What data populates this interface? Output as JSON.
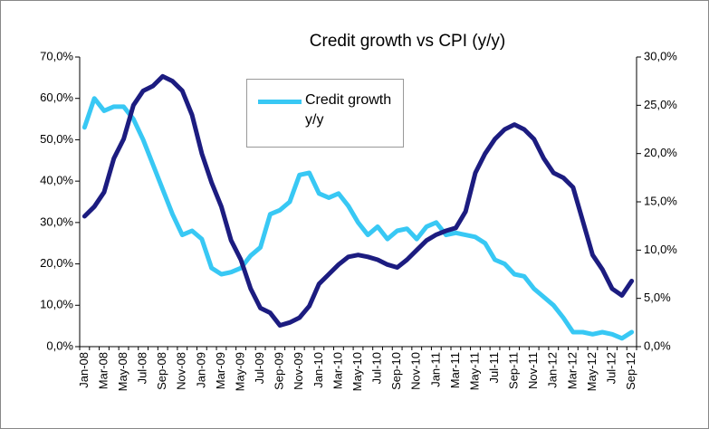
{
  "chart_data": {
    "type": "line",
    "title": "Credit growth  vs CPI (y/y)",
    "categories": [
      "Jan-08",
      null,
      "Mar-08",
      null,
      "May-08",
      null,
      "Jul-08",
      null,
      "Sep-08",
      null,
      "Nov-08",
      null,
      "Jan-09",
      null,
      "Mar-09",
      null,
      "May-09",
      null,
      "Jul-09",
      null,
      "Sep-09",
      null,
      "Nov-09",
      null,
      "Jan-10",
      null,
      "Mar-10",
      null,
      "May-10",
      null,
      "Jul-10",
      null,
      "Sep-10",
      null,
      "Nov-10",
      null,
      "Jan-11",
      null,
      "Mar-11",
      null,
      "May-11",
      null,
      "Jul-11",
      null,
      "Sep-11",
      null,
      "Nov-11",
      null,
      "Jan-12",
      null,
      "Mar-12",
      null,
      "May-12",
      null,
      "Jul-12",
      null,
      "Sep-12"
    ],
    "series": [
      {
        "name": "Credit growth y/y",
        "color": "#38c8f4",
        "values": [
          53,
          60,
          57,
          58,
          58,
          55,
          50,
          44,
          38,
          32,
          27,
          28,
          26,
          19,
          17.5,
          18,
          19,
          22,
          24,
          32,
          33,
          35,
          41.5,
          42,
          37,
          36,
          37,
          34,
          30,
          27,
          29,
          26,
          28,
          28.5,
          26,
          29,
          30,
          27,
          27.5,
          27,
          26.5,
          25,
          21,
          20,
          17.5,
          17,
          14,
          12,
          10,
          7,
          3.5,
          3.5,
          3,
          3.5,
          3,
          2,
          3.5
        ]
      },
      {
        "color": "#1c1c80",
        "axis": "y2",
        "values": [
          13.5,
          14.5,
          16,
          19.5,
          21.5,
          25,
          26.5,
          27,
          28,
          27.5,
          26.5,
          24,
          20,
          17,
          14.5,
          11,
          9,
          6,
          4,
          3.5,
          2.2,
          2.5,
          3,
          4.2,
          6.5,
          7.5,
          8.5,
          9.3,
          9.5,
          9.3,
          9,
          8.5,
          8.2,
          9,
          10,
          11,
          11.6,
          12,
          12.3,
          14,
          18,
          20,
          21.5,
          22.5,
          23,
          22.5,
          21.5,
          19.5,
          18,
          17.5,
          16.5,
          13,
          9.5,
          8,
          6,
          5.3,
          6.8
        ]
      }
    ],
    "ylim": [
      0,
      70
    ],
    "yticks": [
      {
        "value": 0,
        "label": "0,0%"
      },
      {
        "value": 10,
        "label": "10,0%"
      },
      {
        "value": 20,
        "label": "20,0%"
      },
      {
        "value": 30,
        "label": "30,0%"
      },
      {
        "value": 40,
        "label": "40,0%"
      },
      {
        "value": 50,
        "label": "50,0%"
      },
      {
        "value": 60,
        "label": "60,0%"
      },
      {
        "value": 70,
        "label": "70,0%"
      }
    ],
    "y2lim": [
      0,
      30
    ],
    "y2ticks": [
      {
        "value": 0,
        "label": "0,0%"
      },
      {
        "value": 5,
        "label": "5,0%"
      },
      {
        "value": 10,
        "label": "10,0%"
      },
      {
        "value": 15,
        "label": "15,0%"
      },
      {
        "value": 20,
        "label": "20,0%"
      },
      {
        "value": 25,
        "label": "25,0%"
      },
      {
        "value": 30,
        "label": "30,0%"
      }
    ],
    "grid": false,
    "legend": "top-center"
  }
}
